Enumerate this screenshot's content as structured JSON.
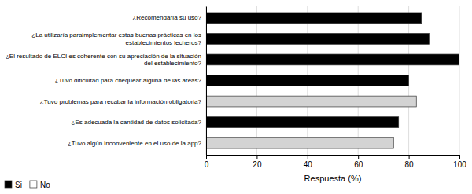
{
  "chart_data": {
    "type": "bar",
    "orientation": "horizontal",
    "categories": [
      "¿Tuvo algún inconveniente en el uso de la app?",
      "¿Es adecuada la cantidad de datos solicitada?",
      "¿Tuvo problemas para recabar la información obligatoria?",
      "¿Tuvo dificultad para chequear alguna de las áreas?",
      "¿El resultado de ELCI es coherente con su apreciación de la situación\ndel establecimiento?",
      "¿La utilizaría paraimplementar estas buenas prácticas en los\nestablecimientos lecheros?",
      "¿Recomendaría su uso?"
    ],
    "values": [
      74,
      76,
      83,
      80,
      100,
      88,
      85
    ],
    "colors": [
      "#d3d3d3",
      "#000000",
      "#d3d3d3",
      "#000000",
      "#000000",
      "#000000",
      "#000000"
    ],
    "xlabel": "Respuesta (%)",
    "xlim": [
      0,
      100
    ],
    "xticks": [
      0,
      20,
      40,
      60,
      80,
      100
    ],
    "grid": true,
    "legend": "lower left",
    "legend_entries": [
      {
        "name": "Si",
        "color": "#000000"
      },
      {
        "name": "No",
        "color": "#ffffff"
      }
    ]
  }
}
